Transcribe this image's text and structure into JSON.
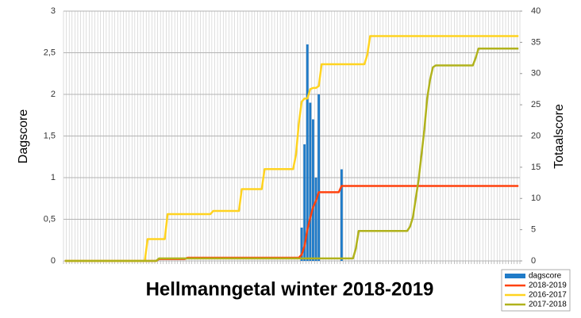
{
  "chart_data": {
    "type": "bar",
    "title": "Hellmanngetal winter 2018-2019",
    "y_label": "Dagscore",
    "y2_label": "Totaalscore",
    "grid": true,
    "legend": "bottom-right",
    "categories": [
      null,
      null,
      null,
      null,
      null,
      null,
      null,
      null,
      null,
      null,
      null,
      null,
      null,
      null,
      null,
      null,
      null,
      null,
      null,
      null,
      null,
      null,
      null,
      null,
      null,
      null,
      null,
      null,
      null,
      null,
      null,
      null,
      null,
      null,
      null,
      null,
      null,
      null,
      null,
      null,
      null,
      null,
      null,
      null,
      null,
      null,
      null,
      null,
      null,
      null,
      null,
      null,
      null,
      null,
      null,
      null,
      null,
      null,
      null,
      null,
      null,
      null,
      null,
      null,
      null,
      null,
      null,
      null,
      null,
      null,
      null,
      null,
      null,
      null,
      null,
      null,
      null,
      null,
      null,
      null,
      null,
      null,
      null,
      null,
      null,
      null,
      null,
      null,
      null,
      null,
      null,
      null,
      null,
      null,
      null,
      null,
      null,
      null,
      null,
      null,
      null,
      null,
      null,
      null,
      null,
      null,
      null,
      null,
      null,
      null,
      null,
      null,
      null,
      null,
      null,
      null,
      null,
      null,
      null,
      null,
      null,
      null,
      null,
      null,
      null,
      null,
      null,
      null,
      null,
      null,
      null,
      null,
      null,
      null,
      null,
      null,
      null,
      null,
      null,
      null,
      null,
      null,
      null,
      null,
      null,
      null,
      null,
      null,
      null,
      null,
      null,
      null,
      null,
      null,
      null,
      null,
      null,
      null,
      null,
      null
    ],
    "ylim": [
      0,
      3
    ],
    "yticks": [
      0,
      {
        "value": 0.5,
        "label": "0,5"
      },
      1,
      {
        "value": 1.5,
        "label": "1,5"
      },
      2,
      {
        "value": 2.5,
        "label": "2,5"
      },
      3
    ],
    "y2lim": [
      0,
      40
    ],
    "y2ticks": [
      0,
      5,
      10,
      15,
      20,
      25,
      30,
      35,
      40
    ],
    "series": [
      {
        "name": "dagscore",
        "type": "bar",
        "axis": "y",
        "color": "#1f7bc8",
        "values": [
          0,
          0,
          0,
          0,
          0,
          0,
          0,
          0,
          0,
          0,
          0,
          0,
          0,
          0,
          0,
          0,
          0,
          0,
          0,
          0,
          0,
          0,
          0,
          0,
          0,
          0,
          0,
          0,
          0,
          0,
          0,
          0,
          0,
          0,
          0,
          0,
          0,
          0,
          0,
          0,
          0,
          0,
          0,
          0,
          0,
          0,
          0,
          0,
          0,
          0,
          0,
          0,
          0,
          0,
          0,
          0,
          0,
          0,
          0,
          0,
          0,
          0,
          0,
          0,
          0,
          0,
          0,
          0,
          0,
          0,
          0,
          0,
          0,
          0,
          0,
          0,
          0,
          0,
          0,
          0,
          0,
          0,
          0,
          0.4,
          1.4,
          2.6,
          1.9,
          1.7,
          1,
          2,
          0,
          0,
          0,
          0,
          0,
          0,
          0,
          1.1,
          0,
          0,
          0,
          0,
          0,
          0,
          0,
          0,
          0,
          0,
          0,
          0,
          0,
          0,
          0,
          0,
          0,
          0,
          0,
          0,
          0,
          0,
          0,
          0,
          0,
          0,
          0,
          0,
          0,
          0,
          0,
          0,
          0,
          0,
          0,
          0,
          0,
          0,
          0,
          0,
          0,
          0,
          0,
          0,
          0,
          0,
          0,
          0,
          0,
          0,
          0,
          0,
          0,
          0,
          0,
          0,
          0,
          0,
          0,
          0,
          0,
          0
        ]
      },
      {
        "name": "2018-2019",
        "type": "line",
        "axis": "y2",
        "color": "#ff420e",
        "values": [
          0,
          0,
          0,
          0,
          0,
          0,
          0,
          0,
          0,
          0,
          0,
          0,
          0,
          0,
          0,
          0,
          0,
          0,
          0,
          0,
          0,
          0,
          0,
          0,
          0,
          0,
          0,
          0,
          0,
          0,
          0,
          0,
          0,
          0.3,
          0.3,
          0.3,
          0.3,
          0.3,
          0.3,
          0.3,
          0.3,
          0.3,
          0.3,
          0.5,
          0.5,
          0.5,
          0.5,
          0.5,
          0.5,
          0.5,
          0.5,
          0.5,
          0.5,
          0.5,
          0.5,
          0.5,
          0.5,
          0.5,
          0.5,
          0.5,
          0.5,
          0.5,
          0.5,
          0.5,
          0.5,
          0.5,
          0.5,
          0.5,
          0.5,
          0.5,
          0.5,
          0.5,
          0.5,
          0.5,
          0.5,
          0.5,
          0.5,
          0.5,
          0.5,
          0.5,
          0.5,
          0.5,
          0.5,
          1,
          2.4,
          5,
          6.9,
          8.6,
          9.6,
          11,
          11,
          11,
          11,
          11,
          11,
          11,
          11,
          12,
          12,
          12,
          12,
          12,
          12,
          12,
          12,
          12,
          12,
          12,
          12,
          12,
          12,
          12,
          12,
          12,
          12,
          12,
          12,
          12,
          12,
          12,
          12,
          12,
          12,
          12,
          12,
          12,
          12,
          12,
          12,
          12,
          12,
          12,
          12,
          12,
          12,
          12,
          12,
          12,
          12,
          12,
          12,
          12,
          12,
          12,
          12,
          12,
          12,
          12,
          12,
          12,
          12,
          12,
          12,
          12,
          12,
          12,
          12,
          12,
          12,
          12
        ]
      },
      {
        "name": "2016-2017",
        "type": "line",
        "axis": "y2",
        "color": "#ffd320",
        "values": [
          0,
          0,
          0,
          0,
          0,
          0,
          0,
          0,
          0,
          0,
          0,
          0,
          0,
          0,
          0,
          0,
          0,
          0,
          0,
          0,
          0,
          0,
          0,
          0,
          0,
          0,
          0,
          0,
          0,
          3.5,
          3.5,
          3.5,
          3.5,
          3.5,
          3.5,
          3.5,
          7.5,
          7.5,
          7.5,
          7.5,
          7.5,
          7.5,
          7.5,
          7.5,
          7.5,
          7.5,
          7.5,
          7.5,
          7.5,
          7.5,
          7.5,
          7.5,
          8,
          8,
          8,
          8,
          8,
          8,
          8,
          8,
          8,
          8,
          11.5,
          11.5,
          11.5,
          11.5,
          11.5,
          11.5,
          11.5,
          11.5,
          14.7,
          14.7,
          14.7,
          14.7,
          14.7,
          14.7,
          14.7,
          14.7,
          14.7,
          14.7,
          14.7,
          17,
          22,
          25.5,
          26,
          26,
          27.5,
          27.7,
          27.7,
          28,
          31.5,
          31.5,
          31.5,
          31.5,
          31.5,
          31.5,
          31.5,
          31.5,
          31.5,
          31.5,
          31.5,
          31.5,
          31.5,
          31.5,
          31.5,
          31.5,
          33,
          36,
          36,
          36,
          36,
          36,
          36,
          36,
          36,
          36,
          36,
          36,
          36,
          36,
          36,
          36,
          36,
          36,
          36,
          36,
          36,
          36,
          36,
          36,
          36,
          36,
          36,
          36,
          36,
          36,
          36,
          36,
          36,
          36,
          36,
          36,
          36,
          36,
          36,
          36,
          36,
          36,
          36,
          36,
          36,
          36,
          36,
          36,
          36,
          36,
          36,
          36,
          36,
          36
        ]
      },
      {
        "name": "2017-2018",
        "type": "line",
        "axis": "y2",
        "color": "#b0b21c",
        "values": [
          0,
          0,
          0,
          0,
          0,
          0,
          0,
          0,
          0,
          0,
          0,
          0,
          0,
          0,
          0,
          0,
          0,
          0,
          0,
          0,
          0,
          0,
          0,
          0,
          0,
          0,
          0,
          0,
          0,
          0,
          0,
          0,
          0,
          0.4,
          0.4,
          0.4,
          0.4,
          0.4,
          0.4,
          0.4,
          0.4,
          0.4,
          0.4,
          0.4,
          0.4,
          0.4,
          0.4,
          0.4,
          0.4,
          0.4,
          0.4,
          0.4,
          0.4,
          0.4,
          0.4,
          0.4,
          0.4,
          0.4,
          0.4,
          0.4,
          0.4,
          0.4,
          0.4,
          0.4,
          0.4,
          0.4,
          0.4,
          0.4,
          0.4,
          0.4,
          0.4,
          0.4,
          0.4,
          0.4,
          0.4,
          0.4,
          0.4,
          0.4,
          0.4,
          0.4,
          0.4,
          0.4,
          0.4,
          0.4,
          0.4,
          0.4,
          0.4,
          0.4,
          0.4,
          0.4,
          0.4,
          0.4,
          0.4,
          0.4,
          0.4,
          0.4,
          0.4,
          0.4,
          0.4,
          0.4,
          0.4,
          0.4,
          2,
          4.8,
          4.8,
          4.8,
          4.8,
          4.8,
          4.8,
          4.8,
          4.8,
          4.8,
          4.8,
          4.8,
          4.8,
          4.8,
          4.8,
          4.8,
          4.8,
          4.8,
          4.8,
          5.5,
          7,
          10,
          13,
          17,
          21,
          26,
          29,
          31,
          31.3,
          31.3,
          31.3,
          31.3,
          31.3,
          31.3,
          31.3,
          31.3,
          31.3,
          31.3,
          31.3,
          31.3,
          31.3,
          31.3,
          32.5,
          34,
          34,
          34,
          34,
          34,
          34,
          34,
          34,
          34,
          34,
          34,
          34,
          34,
          34,
          34
        ]
      }
    ]
  }
}
